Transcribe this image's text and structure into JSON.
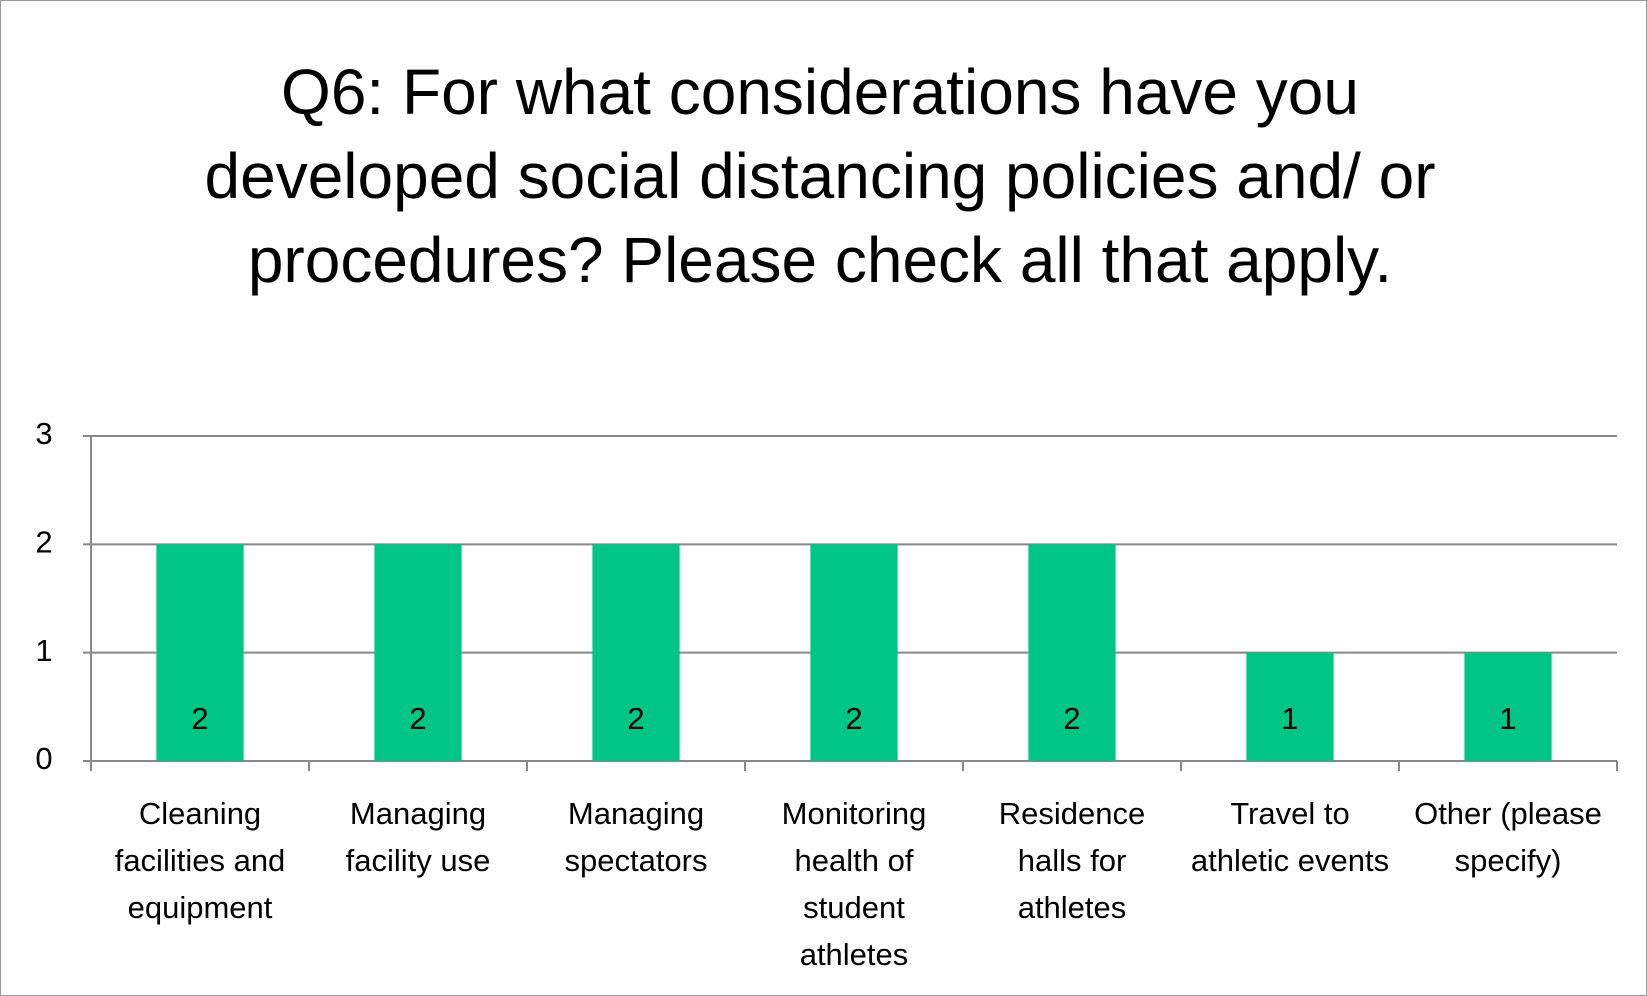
{
  "chart_data": {
    "type": "bar",
    "title": "Q6: For what considerations have you developed social distancing policies and/ or procedures?  Please check all that apply.",
    "categories": [
      "Cleaning facilities and equipment",
      "Managing facility use",
      "Managing spectators",
      "Monitoring health of student athletes",
      "Residence halls for athletes",
      "Travel to athletic events",
      "Other (please specify)"
    ],
    "values": [
      2,
      2,
      2,
      2,
      2,
      1,
      1
    ],
    "color": "#00c584",
    "ylim": [
      0,
      3
    ],
    "yticks": [
      0,
      1,
      2,
      3
    ],
    "grid": true
  }
}
